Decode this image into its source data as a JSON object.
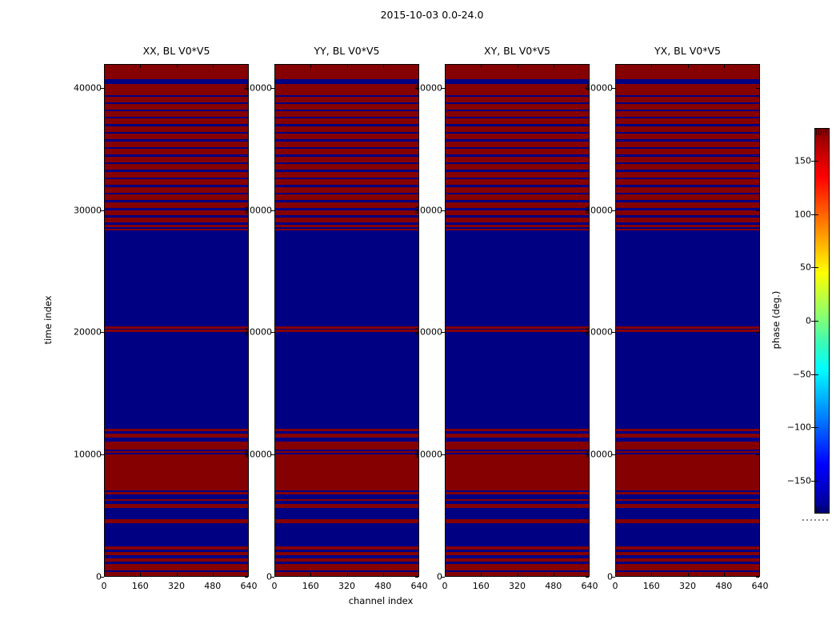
{
  "figure": {
    "title": "2015-10-03 0.0-24.0",
    "xlabel": "channel index",
    "ylabel": "time index",
    "colorbar_label": "phase (deg.)"
  },
  "panels": [
    {
      "title": "XX, BL V0*V5"
    },
    {
      "title": "YY, BL V0*V5"
    },
    {
      "title": "XY, BL V0*V5"
    },
    {
      "title": "YX, BL V0*V5"
    }
  ],
  "axes": {
    "x_tick_labels": [
      "0",
      "160",
      "320",
      "480",
      "640"
    ],
    "x_tick_values": [
      0,
      160,
      320,
      480,
      640
    ],
    "x_max": 640,
    "y_tick_labels": [
      "0",
      "10000",
      "20000",
      "30000",
      "40000"
    ],
    "y_tick_values": [
      0,
      10000,
      20000,
      30000,
      40000
    ]
  },
  "colorbar": {
    "label": "phase (deg.)",
    "vmin": -180,
    "vmax": 180,
    "tick_labels": [
      "150",
      "100",
      "50",
      "0",
      "−50",
      "−100",
      "−150"
    ],
    "tick_values": [
      150,
      100,
      50,
      0,
      -50,
      -100,
      -150
    ],
    "gradient": [
      {
        "v": -180,
        "c": "#000080"
      },
      {
        "v": -157,
        "c": "#0000c8"
      },
      {
        "v": -135,
        "c": "#0000ff"
      },
      {
        "v": -90,
        "c": "#0080ff"
      },
      {
        "v": -45,
        "c": "#00ffff"
      },
      {
        "v": -20,
        "c": "#3cf9b4"
      },
      {
        "v": 0,
        "c": "#7dff7d"
      },
      {
        "v": 45,
        "c": "#ffff00"
      },
      {
        "v": 90,
        "c": "#ff8000"
      },
      {
        "v": 135,
        "c": "#ff0000"
      },
      {
        "v": 157,
        "c": "#c80000"
      },
      {
        "v": 180,
        "c": "#800000"
      }
    ]
  },
  "chart_data": {
    "type": "heatmap",
    "title": "2015-10-03 0.0-24.0",
    "subplot_titles": [
      "XX, BL V0*V5",
      "YY, BL V0*V5",
      "XY, BL V0*V5",
      "YX, BL V0*V5"
    ],
    "xlabel": "channel index",
    "ylabel": "time index",
    "colorbar_label": "phase (deg.)",
    "x_range": [
      0,
      640
    ],
    "y_range": [
      0,
      41950
    ],
    "color_range_deg": [
      -180,
      180
    ],
    "phase_colors": {
      "positive_180": "#850000",
      "negative_180": "#000082"
    },
    "note": "All four polarization panels (XX, YY, XY, YX of baseline V0*V5) show identical horizontal banding: visibility phase saturated near +180 deg (dark red) or -180 deg (dark blue), constant across all 640 channels, flipping with time index.",
    "first_band_phase": "positive",
    "band_edges_time": [
      41950,
      40790,
      40390,
      39440,
      39310,
      38880,
      38720,
      38290,
      38130,
      37700,
      37540,
      37080,
      36910,
      36450,
      36290,
      35830,
      35670,
      35210,
      35040,
      34580,
      34420,
      33960,
      33800,
      33340,
      33170,
      32710,
      32550,
      32090,
      31930,
      31470,
      31300,
      30840,
      30680,
      30190,
      29990,
      29600,
      29430,
      29010,
      28810,
      28640,
      28510,
      28380,
      20510,
      20280,
      20210,
      20050,
      12080,
      11880,
      11710,
      11390,
      11060,
      10340,
      10210,
      10110,
      9980,
      7020,
      6870,
      6710,
      6320,
      6170,
      5930,
      5600,
      4680,
      4350,
      2410,
      2150,
      1950,
      1690,
      1460,
      1200,
      970,
      480,
      330,
      0
    ]
  }
}
